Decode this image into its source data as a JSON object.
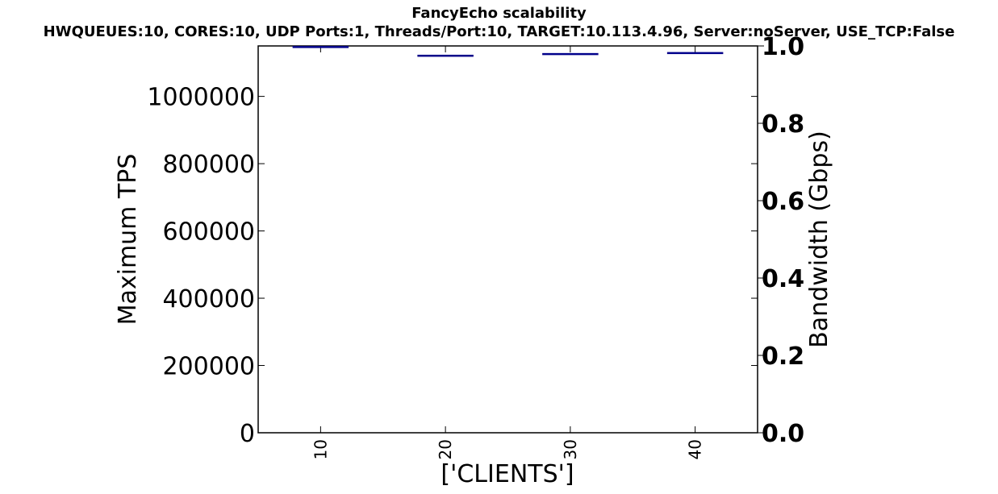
{
  "chart_data": {
    "type": "box",
    "title": "FancyEcho scalability",
    "subtitle": "HWQUEUES:10, CORES:10, UDP Ports:1, Threads/Port:10, TARGET:10.113.4.96, Server:noServer, USE_TCP:False",
    "xlabel": "['CLIENTS']",
    "ylabel": "Maximum TPS",
    "ylabel_right": "Bandwidth (Gbps)",
    "x_categories": [
      "10",
      "20",
      "30",
      "40"
    ],
    "xlim": [
      5,
      45
    ],
    "ylim": [
      0,
      1150000
    ],
    "y2lim": [
      0.0,
      1.0
    ],
    "yticks": [
      "0",
      "200000",
      "400000",
      "600000",
      "800000",
      "1000000"
    ],
    "y2ticks": [
      "0.0",
      "0.2",
      "0.4",
      "0.6",
      "0.8",
      "1.0"
    ],
    "series": [
      {
        "x": 10,
        "values": [
          1148000,
          1148000,
          1148000,
          1148000,
          1148000
        ]
      },
      {
        "x": 20,
        "values": [
          1120000,
          1120000,
          1121000,
          1122000,
          1122000
        ]
      },
      {
        "x": 30,
        "values": [
          1125000,
          1125000,
          1126000,
          1127000,
          1127000
        ]
      },
      {
        "x": 40,
        "values": [
          1128000,
          1128000,
          1129000,
          1130000,
          1130000
        ]
      }
    ],
    "box_color": "#00008b",
    "grid": false
  }
}
